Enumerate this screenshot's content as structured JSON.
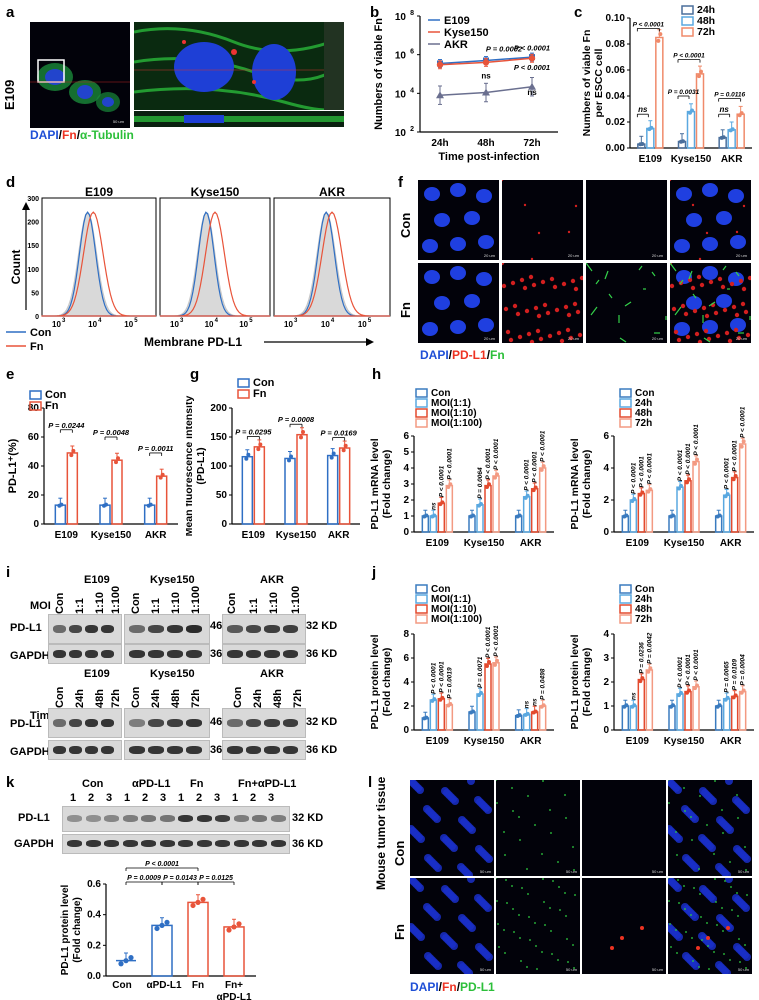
{
  "panel_labels": {
    "a": "a",
    "b": "b",
    "c": "c",
    "d": "d",
    "e": "e",
    "f": "f",
    "g": "g",
    "h": "h",
    "i": "i",
    "j": "j",
    "k": "k",
    "l": "l"
  },
  "a": {
    "cell_line": "E109",
    "stain_dapi": "DAPI",
    "stain_fn": "Fn",
    "stain_tub": "α-Tubulin",
    "sep": "/",
    "scale": "50 um"
  },
  "b": {
    "chart_data": {
      "type": "line",
      "x": [
        "24h",
        "48h",
        "72h"
      ],
      "series": [
        {
          "name": "E109",
          "values": [
            350000,
            500000,
            750000
          ]
        },
        {
          "name": "Kyse150",
          "values": [
            300000,
            400000,
            650000
          ]
        },
        {
          "name": "AKR",
          "values": [
            8000,
            11000,
            22000
          ]
        }
      ],
      "xlabel": "Time post-infection",
      "ylabel": "Numbers of viable Fn",
      "yscale": "log",
      "ylim": [
        100,
        100000000
      ],
      "yticks": [
        "10",
        "10",
        "10",
        "10"
      ],
      "yexp": [
        "2",
        "4",
        "6",
        "8"
      ],
      "annotations": [
        "P = 0.0002",
        "P < 0.0001",
        "P < 0.0001",
        "ns",
        "ns"
      ]
    }
  },
  "c": {
    "chart_data": {
      "type": "bar",
      "categories": [
        "E109",
        "Kyse150",
        "AKR"
      ],
      "series": [
        {
          "name": "24h",
          "values": [
            0.003,
            0.005,
            0.008
          ]
        },
        {
          "name": "48h",
          "values": [
            0.015,
            0.028,
            0.014
          ]
        },
        {
          "name": "72h",
          "values": [
            0.085,
            0.057,
            0.026
          ]
        }
      ],
      "ylabel": "Numbers of viable Fn per ESCC cell",
      "ylim": [
        0,
        0.1
      ],
      "yticks": [
        "0.00",
        "0.02",
        "0.04",
        "0.06",
        "0.08",
        "0.10"
      ],
      "annotations": [
        "P < 0.0001",
        "ns",
        "P < 0.0001",
        "P = 0.0031",
        "ns",
        "P = 0.0116"
      ]
    }
  },
  "d": {
    "titles": [
      "E109",
      "Kyse150",
      "AKR"
    ],
    "xlabel": "Membrane PD-L1",
    "ylabel": "Count",
    "legend": [
      "Con",
      "Fn"
    ],
    "yticks": [
      "0",
      "50",
      "100",
      "150",
      "200",
      "300"
    ],
    "xt_base": "10",
    "xt_exp": [
      "3",
      "4",
      "5"
    ]
  },
  "e": {
    "chart_data": {
      "type": "bar",
      "categories": [
        "E109",
        "Kyse150",
        "AKR"
      ],
      "series": [
        {
          "name": "Con",
          "values": [
            13,
            13,
            13
          ]
        },
        {
          "name": "Fn",
          "values": [
            49,
            44,
            33
          ]
        }
      ],
      "ylabel": "PD-L1⁺(%)",
      "ylim": [
        0,
        80
      ],
      "yticks": [
        "0",
        "20",
        "40",
        "60",
        "80"
      ],
      "annotations": [
        "P = 0.0244",
        "P = 0.0048",
        "P = 0.0011"
      ]
    }
  },
  "f": {
    "rows": [
      "Con",
      "Fn"
    ],
    "stain_dapi": "DAPI",
    "stain_pd": "PD-L1",
    "stain_fn": "Fn",
    "sep": "/",
    "scale": "20 um"
  },
  "g": {
    "chart_data": {
      "type": "bar",
      "categories": [
        "E109",
        "Kyse150",
        "AKR"
      ],
      "series": [
        {
          "name": "Con",
          "values": [
            116,
            113,
            118
          ]
        },
        {
          "name": "Fn",
          "values": [
            133,
            154,
            131
          ]
        }
      ],
      "ylabel": "Mean fluorescence intensity (PD-L1)",
      "ylim": [
        0,
        200
      ],
      "yticks": [
        "0",
        "50",
        "100",
        "150",
        "200"
      ],
      "annotations": [
        "P = 0.0295",
        "P = 0.0008",
        "P = 0.0169"
      ]
    }
  },
  "h1": {
    "chart_data": {
      "type": "bar",
      "categories": [
        "E109",
        "Kyse150",
        "AKR"
      ],
      "series": [
        {
          "name": "Con",
          "values": [
            1,
            1,
            1
          ]
        },
        {
          "name": "MOI(1:1)",
          "values": [
            1,
            1.7,
            2.2
          ]
        },
        {
          "name": "MOI(1:10)",
          "values": [
            1.8,
            2.9,
            2.7
          ]
        },
        {
          "name": "MOI(1:100)",
          "values": [
            2.9,
            3.5,
            4
          ]
        }
      ],
      "ylabel": "PD-L1 mRNA level (Fold change)",
      "ylim": [
        0,
        6
      ],
      "yticks": [
        "0",
        "1",
        "2",
        "3",
        "4",
        "5",
        "6"
      ],
      "annotations": [
        "ns",
        "P < 0.0001",
        "P < 0.0001",
        "P = 0.0064",
        "P < 0.0001",
        "P < 0.0001",
        "P < 0.0001",
        "P < 0.0001",
        "P < 0.0001"
      ]
    }
  },
  "h2": {
    "chart_data": {
      "type": "bar",
      "categories": [
        "E109",
        "Kyse150",
        "AKR"
      ],
      "series": [
        {
          "name": "Con",
          "values": [
            1,
            1,
            1
          ]
        },
        {
          "name": "24h",
          "values": [
            2,
            2.8,
            2.3
          ]
        },
        {
          "name": "48h",
          "values": [
            2.4,
            3.2,
            3.4
          ]
        },
        {
          "name": "72h",
          "values": [
            2.6,
            4.4,
            5.5
          ]
        }
      ],
      "ylabel": "PD-L1 mRNA level (Fold change)",
      "ylim": [
        0,
        6
      ],
      "yticks": [
        "0",
        "2",
        "4",
        "6"
      ],
      "annotations": [
        "P < 0.0001",
        "P < 0.0001",
        "P < 0.0001",
        "P < 0.0001",
        "P < 0.0001",
        "P < 0.0001",
        "P < 0.0001",
        "P < 0.0001",
        "P < 0.0001"
      ]
    }
  },
  "i": {
    "moi_label": "MOI",
    "time_label": "Time",
    "groups": [
      "E109",
      "Kyse150",
      "AKR"
    ],
    "moi_lanes": [
      "Con",
      "1:1",
      "1:10",
      "1:100"
    ],
    "time_lanes": [
      "Con",
      "24h",
      "48h",
      "72h"
    ],
    "rows": [
      "PD-L1",
      "GAPDH"
    ],
    "mw1": "46",
    "mw2": "36",
    "kd1": "32 KD",
    "kd2": "36 KD"
  },
  "j1": {
    "chart_data": {
      "type": "bar",
      "categories": [
        "E109",
        "Kyse150",
        "AKR"
      ],
      "series": [
        {
          "name": "Con",
          "values": [
            1,
            1.5,
            1.2
          ]
        },
        {
          "name": "MOI(1:1)",
          "values": [
            2.5,
            3,
            1.3
          ]
        },
        {
          "name": "MOI(1:10)",
          "values": [
            2.6,
            5.5,
            1.5
          ]
        },
        {
          "name": "MOI(1:100)",
          "values": [
            2.1,
            5.6,
            2
          ]
        }
      ],
      "ylabel": "PD-L1 protein level (Fold change)",
      "ylim": [
        0,
        8
      ],
      "yticks": [
        "0",
        "2",
        "4",
        "6",
        "8"
      ],
      "annotations": [
        "P < 0.0001",
        "P < 0.0001",
        "P = 0.0019",
        "P = 0.0071",
        "P < 0.0001",
        "P < 0.0001",
        "ns",
        "ns",
        "P = 0.0498"
      ]
    }
  },
  "j2": {
    "chart_data": {
      "type": "bar",
      "categories": [
        "E109",
        "Kyse150",
        "AKR"
      ],
      "series": [
        {
          "name": "Con",
          "values": [
            1,
            1,
            1
          ]
        },
        {
          "name": "24h",
          "values": [
            1,
            1.5,
            1.3
          ]
        },
        {
          "name": "48h",
          "values": [
            2.1,
            1.6,
            1.4
          ]
        },
        {
          "name": "72h",
          "values": [
            2.5,
            1.8,
            1.6
          ]
        }
      ],
      "ylabel": "PD-L1 protein level (Fold change)",
      "ylim": [
        0,
        4
      ],
      "yticks": [
        "0",
        "1",
        "2",
        "3",
        "4"
      ],
      "annotations": [
        "ns",
        "P = 0.0236",
        "P = 0.0042",
        "P < 0.0001",
        "P < 0.0001",
        "P < 0.0001",
        "P = 0.0065",
        "P = 0.0109",
        "P = 0.0004"
      ]
    }
  },
  "k": {
    "groups": [
      "Con",
      "αPD-L1",
      "Fn",
      "Fn+αPD-L1"
    ],
    "lanes": [
      "1",
      "2",
      "3"
    ],
    "rows": [
      "PD-L1",
      "GAPDH"
    ],
    "kd1": "32 KD",
    "kd2": "36 KD",
    "chart_data": {
      "type": "bar",
      "categories": [
        "Con",
        "αPD-L1",
        "Fn",
        "Fn+ αPD-L1"
      ],
      "values": [
        0.1,
        0.33,
        0.48,
        0.32
      ],
      "ylabel": "PD-L1 protein level (Fold change)",
      "ylim": [
        0,
        0.6
      ],
      "yticks": [
        "0.0",
        "0.2",
        "0.4",
        "0.6"
      ],
      "annotations": [
        "P < 0.0001",
        "P = 0.0009",
        "P = 0.0143",
        "P = 0.0125"
      ]
    }
  },
  "l": {
    "side_title": "Mouse tumor tissue",
    "rows": [
      "Con",
      "Fn"
    ],
    "stain_dapi": "DAPI",
    "stain_fn": "Fn",
    "stain_pd": "PD-L1",
    "sep": "/",
    "scale": "50 um"
  }
}
